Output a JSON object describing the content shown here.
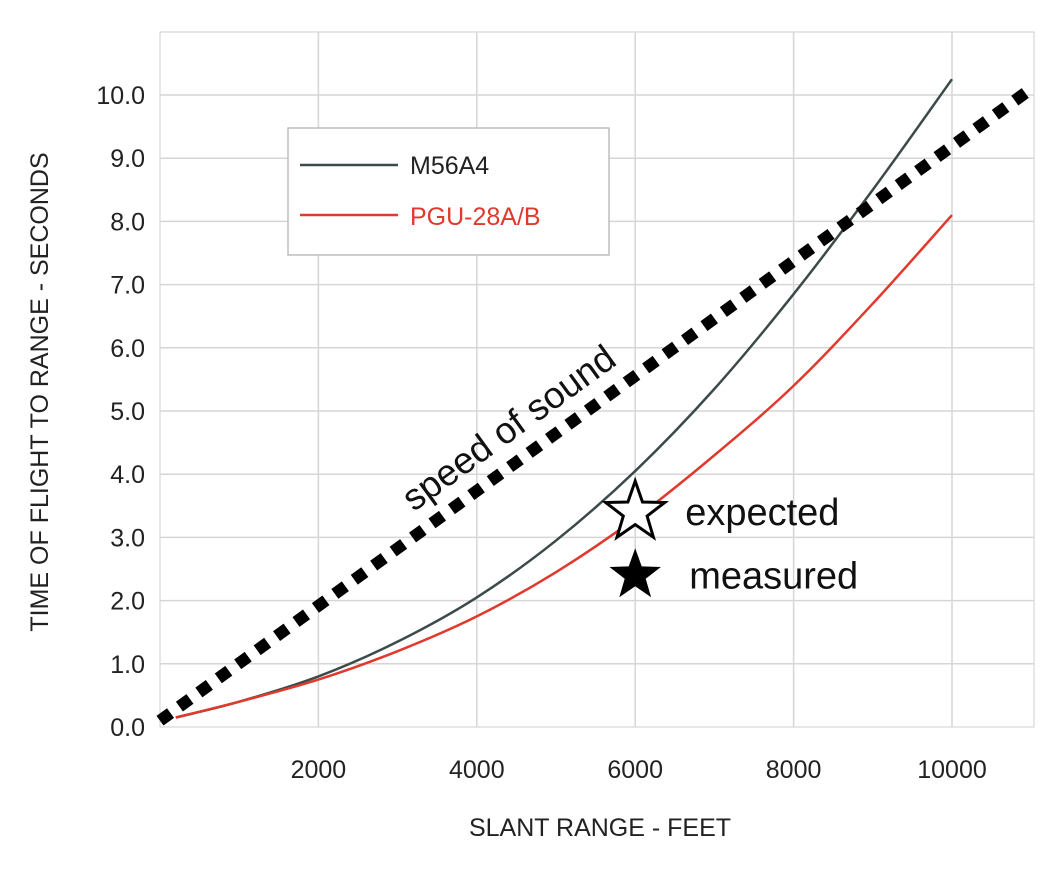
{
  "chart_data": {
    "type": "line",
    "title": "",
    "xlabel": "SLANT RANGE - FEET",
    "ylabel": "TIME OF FLIGHT TO RANGE - SECONDS",
    "xlim": [
      0,
      11000
    ],
    "ylim": [
      0,
      10.7
    ],
    "grid": true,
    "x_ticks": [
      2000,
      4000,
      6000,
      8000,
      10000
    ],
    "x_tick_labels": [
      "2000",
      "4000",
      "6000",
      "8000",
      "10000"
    ],
    "y_ticks": [
      0,
      1,
      2,
      3,
      4,
      5,
      6,
      7,
      8,
      9,
      10
    ],
    "y_tick_labels": [
      "0.0",
      "1.0",
      "2.0",
      "3.0",
      "4.0",
      "5.0",
      "6.0",
      "7.0",
      "8.0",
      "9.0",
      "10.0"
    ],
    "legend_position": "top-left",
    "series": [
      {
        "name": "M56A4",
        "color": "#3d4a4a",
        "style": "solid",
        "x": [
          200,
          1000,
          2000,
          3000,
          4000,
          5000,
          6000,
          7000,
          8000,
          9000,
          10000
        ],
        "y": [
          0.15,
          0.4,
          0.8,
          1.35,
          2.05,
          2.95,
          4.05,
          5.35,
          6.85,
          8.5,
          10.25
        ]
      },
      {
        "name": "PGU-28A/B",
        "color": "#e0392d",
        "style": "solid",
        "x": [
          200,
          1000,
          2000,
          3000,
          4000,
          5000,
          6000,
          7000,
          8000,
          9000,
          10000
        ],
        "y": [
          0.15,
          0.4,
          0.75,
          1.2,
          1.75,
          2.45,
          3.3,
          4.3,
          5.4,
          6.7,
          8.1
        ]
      },
      {
        "name": "speed of sound",
        "color": "#000000",
        "style": "dotted",
        "x": [
          0,
          11000
        ],
        "y": [
          0.1,
          10.1
        ]
      }
    ],
    "annotations": [
      {
        "text": "speed of sound"
      },
      {
        "text": "expected",
        "marker": "hollow-star",
        "x": 6000,
        "y": 3.4
      },
      {
        "text": "measured",
        "marker": "filled-star",
        "x": 6000,
        "y": 2.4
      }
    ]
  }
}
